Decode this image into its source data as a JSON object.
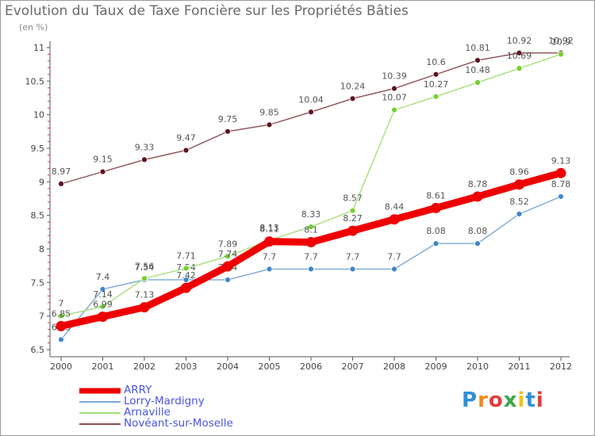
{
  "chart_data": {
    "type": "line",
    "title": "Evolution du Taux de Taxe Foncière sur les Propriétés Bâties",
    "ylabel": "(en %)",
    "xlabel": "",
    "categories": [
      "2000",
      "2001",
      "2002",
      "2003",
      "2004",
      "2005",
      "2006",
      "2007",
      "2008",
      "2009",
      "2010",
      "2011",
      "2012"
    ],
    "ylim": [
      6.5,
      11
    ],
    "yticks": [
      "6.5",
      "7",
      "7.5",
      "8",
      "8.5",
      "9",
      "9.5",
      "10",
      "10.5",
      "11"
    ],
    "grid": false,
    "legend_position": "bottom-left",
    "series": [
      {
        "name": "ARRY",
        "color": "#ee0000",
        "point_color": "#ee0000",
        "values": [
          6.85,
          6.99,
          7.13,
          7.42,
          7.74,
          8.11,
          8.1,
          8.27,
          8.44,
          8.61,
          8.78,
          8.96,
          9.13
        ],
        "labels": [
          "6.85",
          "6.99",
          "7.13",
          "7.42",
          "7.74",
          "8.11",
          "8.1",
          "8.27",
          "8.44",
          "8.61",
          "8.78",
          "8.96",
          "9.13"
        ]
      },
      {
        "name": "Lorry-Mardigny",
        "color": "#7aa9d6",
        "point_color": "#3f86c8",
        "values": [
          6.65,
          7.4,
          7.54,
          7.54,
          7.54,
          7.7,
          7.7,
          7.7,
          7.7,
          8.08,
          8.08,
          8.52,
          8.78
        ],
        "labels": [
          "6.65",
          "7.4",
          "7.54",
          "7.54",
          "7.54",
          "7.7",
          "7.7",
          "7.7",
          "7.7",
          "8.08",
          "8.08",
          "8.52",
          "8.78"
        ]
      },
      {
        "name": "Arnaville",
        "color": "#a5e07c",
        "point_color": "#72d02c",
        "values": [
          7.0,
          7.14,
          7.56,
          7.71,
          7.89,
          8.13,
          8.33,
          8.57,
          10.07,
          10.27,
          10.48,
          10.69,
          10.9
        ],
        "labels": [
          "7",
          "7.14",
          "7.56",
          "7.71",
          "7.89",
          "8.13",
          "8.33",
          "8.57",
          "10.07",
          "10.27",
          "10.48",
          "10.69",
          "10.9"
        ]
      },
      {
        "name": "Novéant-sur-Moselle",
        "color": "#8a4d52",
        "point_color": "#5e1320",
        "values": [
          8.97,
          9.15,
          9.33,
          9.47,
          9.75,
          9.85,
          10.04,
          10.24,
          10.39,
          10.6,
          10.81,
          10.92,
          10.92
        ],
        "labels": [
          "8.97",
          "9.15",
          "9.33",
          "9.47",
          "9.75",
          "9.85",
          "10.04",
          "10.24",
          "10.39",
          "10.6",
          "10.81",
          "10.92",
          "10.92"
        ]
      }
    ]
  },
  "logo": {
    "text": "Proxiti"
  }
}
